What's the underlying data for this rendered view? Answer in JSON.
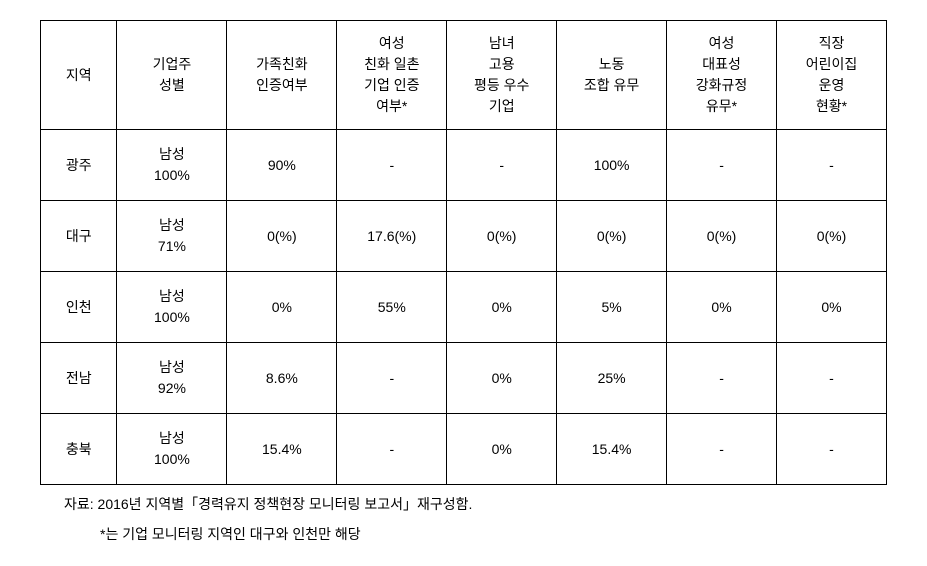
{
  "table": {
    "columns": [
      {
        "key": "region",
        "label": "지역"
      },
      {
        "key": "owner_gender",
        "label": "기업주\n성별"
      },
      {
        "key": "family_cert",
        "label": "가족친화\n인증여부"
      },
      {
        "key": "women_sme_cert",
        "label": "여성\n친화 일촌\n기업 인증\n여부*"
      },
      {
        "key": "gender_equal",
        "label": "남녀\n고용\n평등 우수\n기업"
      },
      {
        "key": "union",
        "label": "노동\n조합 유무"
      },
      {
        "key": "women_rep",
        "label": "여성\n대표성\n강화규정\n유무*"
      },
      {
        "key": "childcare",
        "label": "직장\n어린이집\n운영\n현황*"
      }
    ],
    "rows": [
      {
        "region": "광주",
        "owner_gender": "남성\n100%",
        "family_cert": "90%",
        "women_sme_cert": "-",
        "gender_equal": "-",
        "union": "100%",
        "women_rep": "-",
        "childcare": "-"
      },
      {
        "region": "대구",
        "owner_gender": "남성\n71%",
        "family_cert": "0(%)",
        "women_sme_cert": "17.6(%)",
        "gender_equal": "0(%)",
        "union": "0(%)",
        "women_rep": "0(%)",
        "childcare": "0(%)"
      },
      {
        "region": "인천",
        "owner_gender": "남성\n100%",
        "family_cert": "0%",
        "women_sme_cert": "55%",
        "gender_equal": "0%",
        "union": "5%",
        "women_rep": "0%",
        "childcare": "0%"
      },
      {
        "region": "전남",
        "owner_gender": "남성\n92%",
        "family_cert": "8.6%",
        "women_sme_cert": "-",
        "gender_equal": "0%",
        "union": "25%",
        "women_rep": "-",
        "childcare": "-"
      },
      {
        "region": "충북",
        "owner_gender": "남성\n100%",
        "family_cert": "15.4%",
        "women_sme_cert": "-",
        "gender_equal": "0%",
        "union": "15.4%",
        "women_rep": "-",
        "childcare": "-"
      }
    ]
  },
  "footnote": {
    "line1": "자료: 2016년 지역별「경력유지 정책현장 모니터링 보고서」재구성함.",
    "line2": "*는 기업 모니터링 지역인 대구와 인천만 해당"
  }
}
